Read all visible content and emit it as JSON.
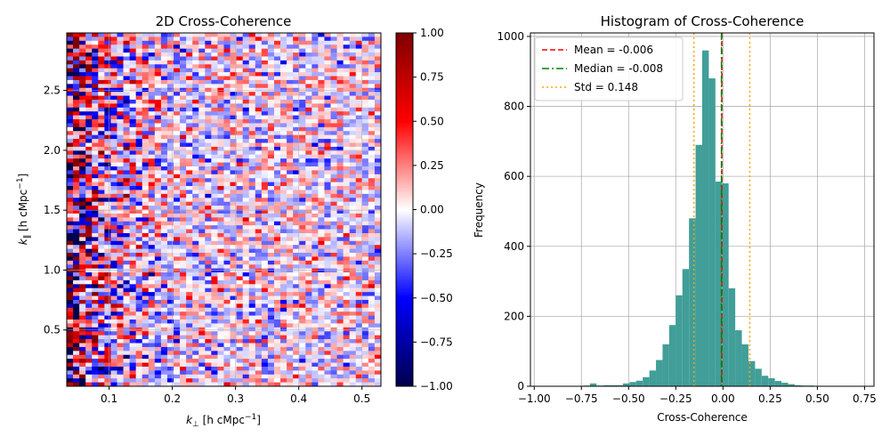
{
  "chart_data": [
    {
      "type": "heatmap",
      "title": "2D Cross-Coherence",
      "xlabel": "k⊥ [h cMpc⁻¹]",
      "ylabel": "k∥ [h cMpc⁻¹]",
      "xlim": [
        0.033,
        0.53
      ],
      "ylim": [
        0.03,
        2.98
      ],
      "xticks": [
        0.1,
        0.2,
        0.3,
        0.4,
        0.5
      ],
      "xtick_labels": [
        "0.1",
        "0.2",
        "0.3",
        "0.4",
        "0.5"
      ],
      "yticks": [
        0.5,
        1.0,
        1.5,
        2.0,
        2.5
      ],
      "ytick_labels": [
        "0.5",
        "1.0",
        "1.5",
        "2.0",
        "2.5"
      ],
      "grid": true,
      "n_cols": 50,
      "n_rows": 90,
      "value_range": [
        -1.0,
        1.0
      ],
      "colormap": "seismic",
      "colorbar": {
        "ticks": [
          -1.0,
          -0.75,
          -0.5,
          -0.25,
          0.0,
          0.25,
          0.5,
          0.75,
          1.0
        ],
        "tick_labels": [
          "−1.00",
          "−0.75",
          "−0.50",
          "−0.25",
          "0.00",
          "0.25",
          "0.50",
          "0.75",
          "1.00"
        ]
      }
    },
    {
      "type": "bar",
      "title": "Histogram of Cross-Coherence",
      "xlabel": "Cross-Coherence",
      "ylabel": "Frequency",
      "xlim": [
        -1.02,
        0.8
      ],
      "ylim": [
        0,
        1010
      ],
      "xticks": [
        -1.0,
        -0.75,
        -0.5,
        -0.25,
        0.0,
        0.25,
        0.5,
        0.75
      ],
      "xtick_labels": [
        "−1.00",
        "−0.75",
        "−0.50",
        "−0.25",
        "0.00",
        "0.25",
        "0.50",
        "0.75"
      ],
      "yticks": [
        0,
        200,
        400,
        600,
        800,
        1000
      ],
      "ytick_labels": [
        "0",
        "200",
        "400",
        "600",
        "800",
        "1000"
      ],
      "grid": true,
      "bar_color": "#419e98",
      "bin_edges": [
        -0.74,
        -0.705,
        -0.67,
        -0.635,
        -0.6,
        -0.565,
        -0.53,
        -0.495,
        -0.46,
        -0.425,
        -0.39,
        -0.355,
        -0.32,
        -0.285,
        -0.25,
        -0.215,
        -0.18,
        -0.145,
        -0.11,
        -0.075,
        -0.04,
        -0.005,
        0.03,
        0.065,
        0.1,
        0.135,
        0.17,
        0.205,
        0.24,
        0.275,
        0.31,
        0.345,
        0.38,
        0.415,
        0.45,
        0.485,
        0.52,
        0.555,
        0.59,
        0.625,
        0.66,
        0.695,
        0.73
      ],
      "counts": [
        2,
        8,
        2,
        3,
        3,
        3,
        8,
        12,
        16,
        26,
        45,
        75,
        120,
        175,
        260,
        335,
        480,
        690,
        960,
        880,
        585,
        580,
        280,
        160,
        120,
        72,
        50,
        30,
        23,
        15,
        10,
        6,
        3,
        2,
        2,
        1,
        1,
        1,
        0,
        0,
        0,
        1
      ],
      "vlines": [
        {
          "value": -0.006,
          "color": "#ff0000",
          "style": "dashed",
          "label": "Mean = -0.006"
        },
        {
          "value": -0.008,
          "color": "#008000",
          "style": "dashdot",
          "label": "Median = -0.008"
        },
        {
          "value": -0.154,
          "color": "#ffa500",
          "style": "dotted",
          "label": "Std = 0.148"
        },
        {
          "value": 0.142,
          "color": "#ffa500",
          "style": "dotted",
          "label": ""
        }
      ],
      "legend_position": "top-left",
      "legend": [
        {
          "label": "Mean = -0.006",
          "color": "#ff0000",
          "style": "dashed"
        },
        {
          "label": "Median = -0.008",
          "color": "#008000",
          "style": "dashdot"
        },
        {
          "label": "Std = 0.148",
          "color": "#ffa500",
          "style": "dotted"
        }
      ]
    }
  ]
}
